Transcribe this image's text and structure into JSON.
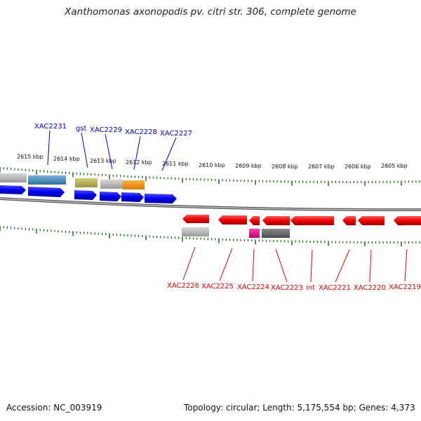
{
  "title": "Xanthomonas axonopodis pv. citri str. 306, complete genome",
  "scale_ticks": [
    "2615 kbp",
    "2614 kbp",
    "2613 kbp",
    "2612 kbp",
    "2611 kbp",
    "2610 kbp",
    "2609 kbp",
    "2608 kbp",
    "2607 kbp",
    "2606 kbp",
    "2605 kbp"
  ],
  "top_labels": [
    "XAC2231",
    "gst",
    "XAC2229",
    "XAC2228",
    "XAC2227"
  ],
  "bottom_labels": [
    "XAC2226",
    "XAC2225",
    "XAC2224",
    "XAC2223",
    "int",
    "XAC2221",
    "XAC2220",
    "XAC2219"
  ],
  "footer": {
    "accession": "Accession: NC_003919",
    "info": "Topology: circular; Length: 5,175,554 bp; Genes: 4,373"
  },
  "colors": {
    "forward_gene": "#0000ee",
    "reverse_gene": "#ee0000",
    "top_label": "#0000cc",
    "bottom_label": "#dd0000",
    "tick": "#006600"
  }
}
